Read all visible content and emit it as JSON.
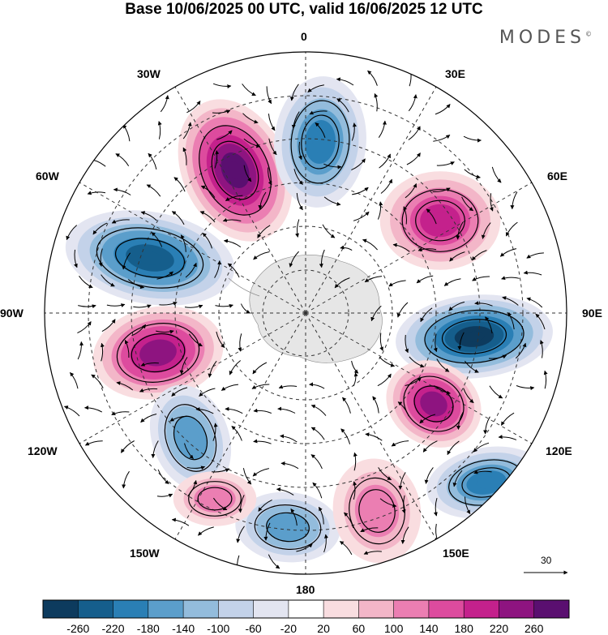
{
  "header": {
    "title": "Base 10/06/2025 00 UTC, valid 16/06/2025 12 UTC",
    "brand": "MODES",
    "brand_mark": "©"
  },
  "map": {
    "projection": "south-polar-stereographic",
    "longitude_labels": {
      "lon_0": "0",
      "lon_30e": "30E",
      "lon_60e": "60E",
      "lon_90e": "90E",
      "lon_120e": "120E",
      "lon_150e": "150E",
      "lon_180": "180",
      "lon_150w": "150W",
      "lon_120w": "120W",
      "lon_90w": "90W",
      "lon_60w": "60W",
      "lon_30w": "30W"
    },
    "vector_scale_label": "30",
    "anomaly_centers": [
      {
        "sign": "positive",
        "value": 280,
        "near": "30W-0"
      },
      {
        "sign": "negative",
        "value": -200,
        "near": "0"
      },
      {
        "sign": "negative",
        "value": -240,
        "near": "60W"
      },
      {
        "sign": "positive",
        "value": 180,
        "near": "60E"
      },
      {
        "sign": "negative",
        "value": -260,
        "near": "90E"
      },
      {
        "sign": "positive",
        "value": 240,
        "near": "90W"
      },
      {
        "sign": "positive",
        "value": 220,
        "near": "120E"
      },
      {
        "sign": "negative",
        "value": -140,
        "near": "120W"
      },
      {
        "sign": "negative",
        "value": -200,
        "near": "120E-150E"
      },
      {
        "sign": "negative",
        "value": -140,
        "near": "180"
      },
      {
        "sign": "positive",
        "value": 120,
        "near": "150E-180"
      },
      {
        "sign": "positive",
        "value": 100,
        "near": "150W-180"
      }
    ]
  },
  "colorbar": {
    "ticks": [
      "-260",
      "-220",
      "-180",
      "-140",
      "-100",
      "-60",
      "-20",
      "20",
      "60",
      "100",
      "140",
      "180",
      "220",
      "260"
    ],
    "colors": [
      "#0d3b5e",
      "#155e8c",
      "#2a7fb5",
      "#5b9ecb",
      "#93bcdc",
      "#c3d2e9",
      "#e3e5f1",
      "#ffffff",
      "#f9dde0",
      "#f3b6c8",
      "#eb7eb2",
      "#dd4b9e",
      "#c4218c",
      "#8e1480",
      "#5a0f70"
    ]
  }
}
